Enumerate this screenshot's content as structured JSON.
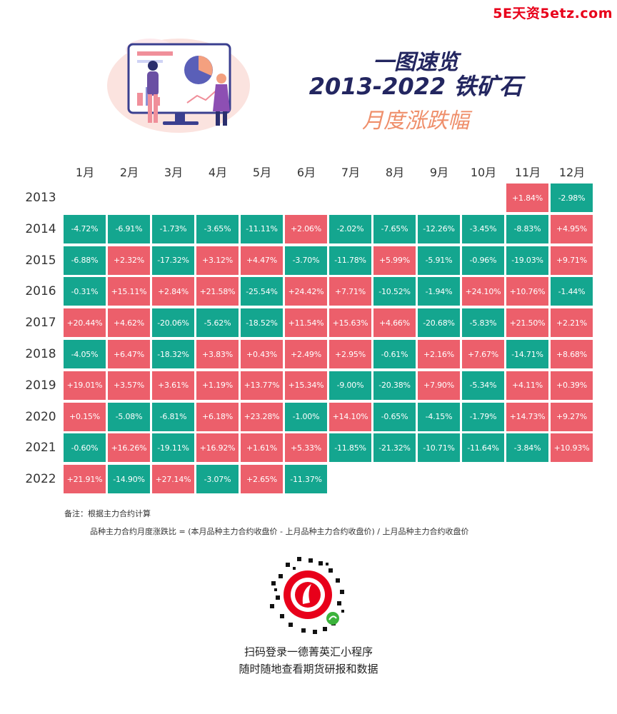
{
  "watermark": "5E天资5etz.com",
  "colors": {
    "up": "#ec5f6b",
    "down": "#14a68f",
    "accent": "#e8001a",
    "title": "#232660",
    "subtitle": "#ef8f6b"
  },
  "header": {
    "line1": "一图速览",
    "line2": "2013-2022 铁矿石",
    "line3": "月度涨跌幅"
  },
  "notes": {
    "line1": "备注：根据主力合约计算",
    "line2": "品种主力合约月度涨跌比 = (本月品种主力合约收盘价 - 上月品种主力合约收盘价) / 上月品种主力合约收盘价"
  },
  "footer": {
    "line1": "扫码登录一德菁英汇小程序",
    "line2": "随时随地查看期货研报和数据"
  },
  "icons": {
    "hero": "presentation-illustration-icon",
    "qr": "mini-program-qr-code-icon"
  },
  "chart_data": {
    "type": "heatmap",
    "months": [
      "1月",
      "2月",
      "3月",
      "4月",
      "5月",
      "6月",
      "7月",
      "8月",
      "9月",
      "10月",
      "11月",
      "12月"
    ],
    "rows": [
      {
        "year": "2013",
        "values": [
          null,
          null,
          null,
          null,
          null,
          null,
          null,
          null,
          null,
          null,
          1.84,
          -2.98
        ]
      },
      {
        "year": "2014",
        "values": [
          -4.72,
          -6.91,
          -1.73,
          -3.65,
          -11.11,
          2.06,
          -2.02,
          -7.65,
          -12.26,
          -3.45,
          -8.83,
          4.95
        ]
      },
      {
        "year": "2015",
        "values": [
          -6.88,
          2.32,
          -17.32,
          3.12,
          4.47,
          -3.7,
          -11.78,
          5.99,
          -5.91,
          -0.96,
          -19.03,
          9.71
        ]
      },
      {
        "year": "2016",
        "values": [
          -0.31,
          15.11,
          2.84,
          21.58,
          -25.54,
          24.42,
          7.71,
          -10.52,
          -1.94,
          24.1,
          10.76,
          -1.44
        ]
      },
      {
        "year": "2017",
        "values": [
          20.44,
          4.62,
          -20.06,
          -5.62,
          -18.52,
          11.54,
          15.63,
          4.66,
          -20.68,
          -5.83,
          21.5,
          2.21
        ]
      },
      {
        "year": "2018",
        "values": [
          -4.05,
          6.47,
          -18.32,
          3.83,
          0.43,
          2.49,
          2.95,
          -0.61,
          2.16,
          7.67,
          -14.71,
          8.68
        ]
      },
      {
        "year": "2019",
        "values": [
          19.01,
          3.57,
          3.61,
          1.19,
          13.77,
          15.34,
          -9.0,
          -20.38,
          7.9,
          -5.34,
          4.11,
          0.39
        ]
      },
      {
        "year": "2020",
        "values": [
          0.15,
          -5.08,
          -6.81,
          6.18,
          23.28,
          -1.0,
          14.1,
          -0.65,
          -4.15,
          -1.79,
          14.73,
          9.27
        ]
      },
      {
        "year": "2021",
        "values": [
          -0.6,
          16.26,
          -19.11,
          16.92,
          1.61,
          5.33,
          -11.85,
          -21.32,
          -10.71,
          -11.64,
          -3.84,
          10.93
        ]
      },
      {
        "year": "2022",
        "values": [
          21.91,
          -14.9,
          27.14,
          -3.07,
          2.65,
          -11.37,
          null,
          null,
          null,
          null,
          null,
          null
        ]
      }
    ]
  }
}
